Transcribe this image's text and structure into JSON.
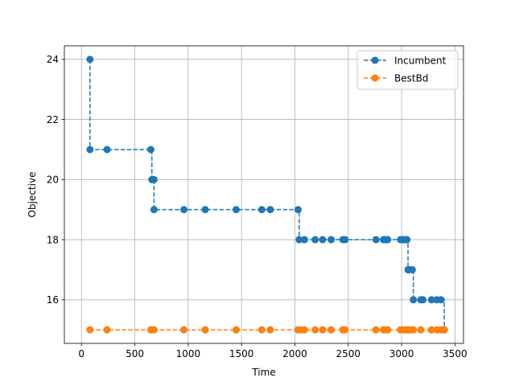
{
  "chart_data": {
    "type": "line",
    "xlabel": "Time",
    "ylabel": "Objective",
    "xlim": [
      -160,
      3580
    ],
    "ylim": [
      14.55,
      24.45
    ],
    "xticks": [
      0,
      500,
      1000,
      1500,
      2000,
      2500,
      3000,
      3500
    ],
    "yticks": [
      16,
      18,
      20,
      22,
      24
    ],
    "grid": true,
    "legend_position": "top-right",
    "series": [
      {
        "name": "Incumbent",
        "color": "#1f77b4",
        "step": true,
        "x": [
          80,
          80,
          240,
          650,
          660,
          680,
          680,
          960,
          1160,
          1450,
          1690,
          1770,
          2030,
          2040,
          2090,
          2190,
          2260,
          2340,
          2450,
          2470,
          2760,
          2830,
          2850,
          2870,
          2990,
          3010,
          3020,
          3040,
          3050,
          3060,
          3070,
          3100,
          3110,
          3180,
          3200,
          3280,
          3330,
          3370,
          3400
        ],
        "y": [
          24,
          21,
          21,
          21,
          20,
          20,
          19,
          19,
          19,
          19,
          19,
          19,
          19,
          18,
          18,
          18,
          18,
          18,
          18,
          18,
          18,
          18,
          18,
          18,
          18,
          18,
          18,
          18,
          18,
          17,
          17,
          17,
          16,
          16,
          16,
          16,
          16,
          16,
          15
        ]
      },
      {
        "name": "BestBd",
        "color": "#ff7f0e",
        "step": true,
        "x": [
          80,
          240,
          650,
          660,
          680,
          960,
          1160,
          1450,
          1690,
          1770,
          2030,
          2060,
          2090,
          2190,
          2260,
          2340,
          2450,
          2470,
          2760,
          2830,
          2850,
          2870,
          2990,
          3010,
          3030,
          3050,
          3060,
          3080,
          3110,
          3180,
          3280,
          3330,
          3370,
          3400
        ],
        "y": [
          15,
          15,
          15,
          15,
          15,
          15,
          15,
          15,
          15,
          15,
          15,
          15,
          15,
          15,
          15,
          15,
          15,
          15,
          15,
          15,
          15,
          15,
          15,
          15,
          15,
          15,
          15,
          15,
          15,
          15,
          15,
          15,
          15,
          15
        ]
      }
    ]
  }
}
